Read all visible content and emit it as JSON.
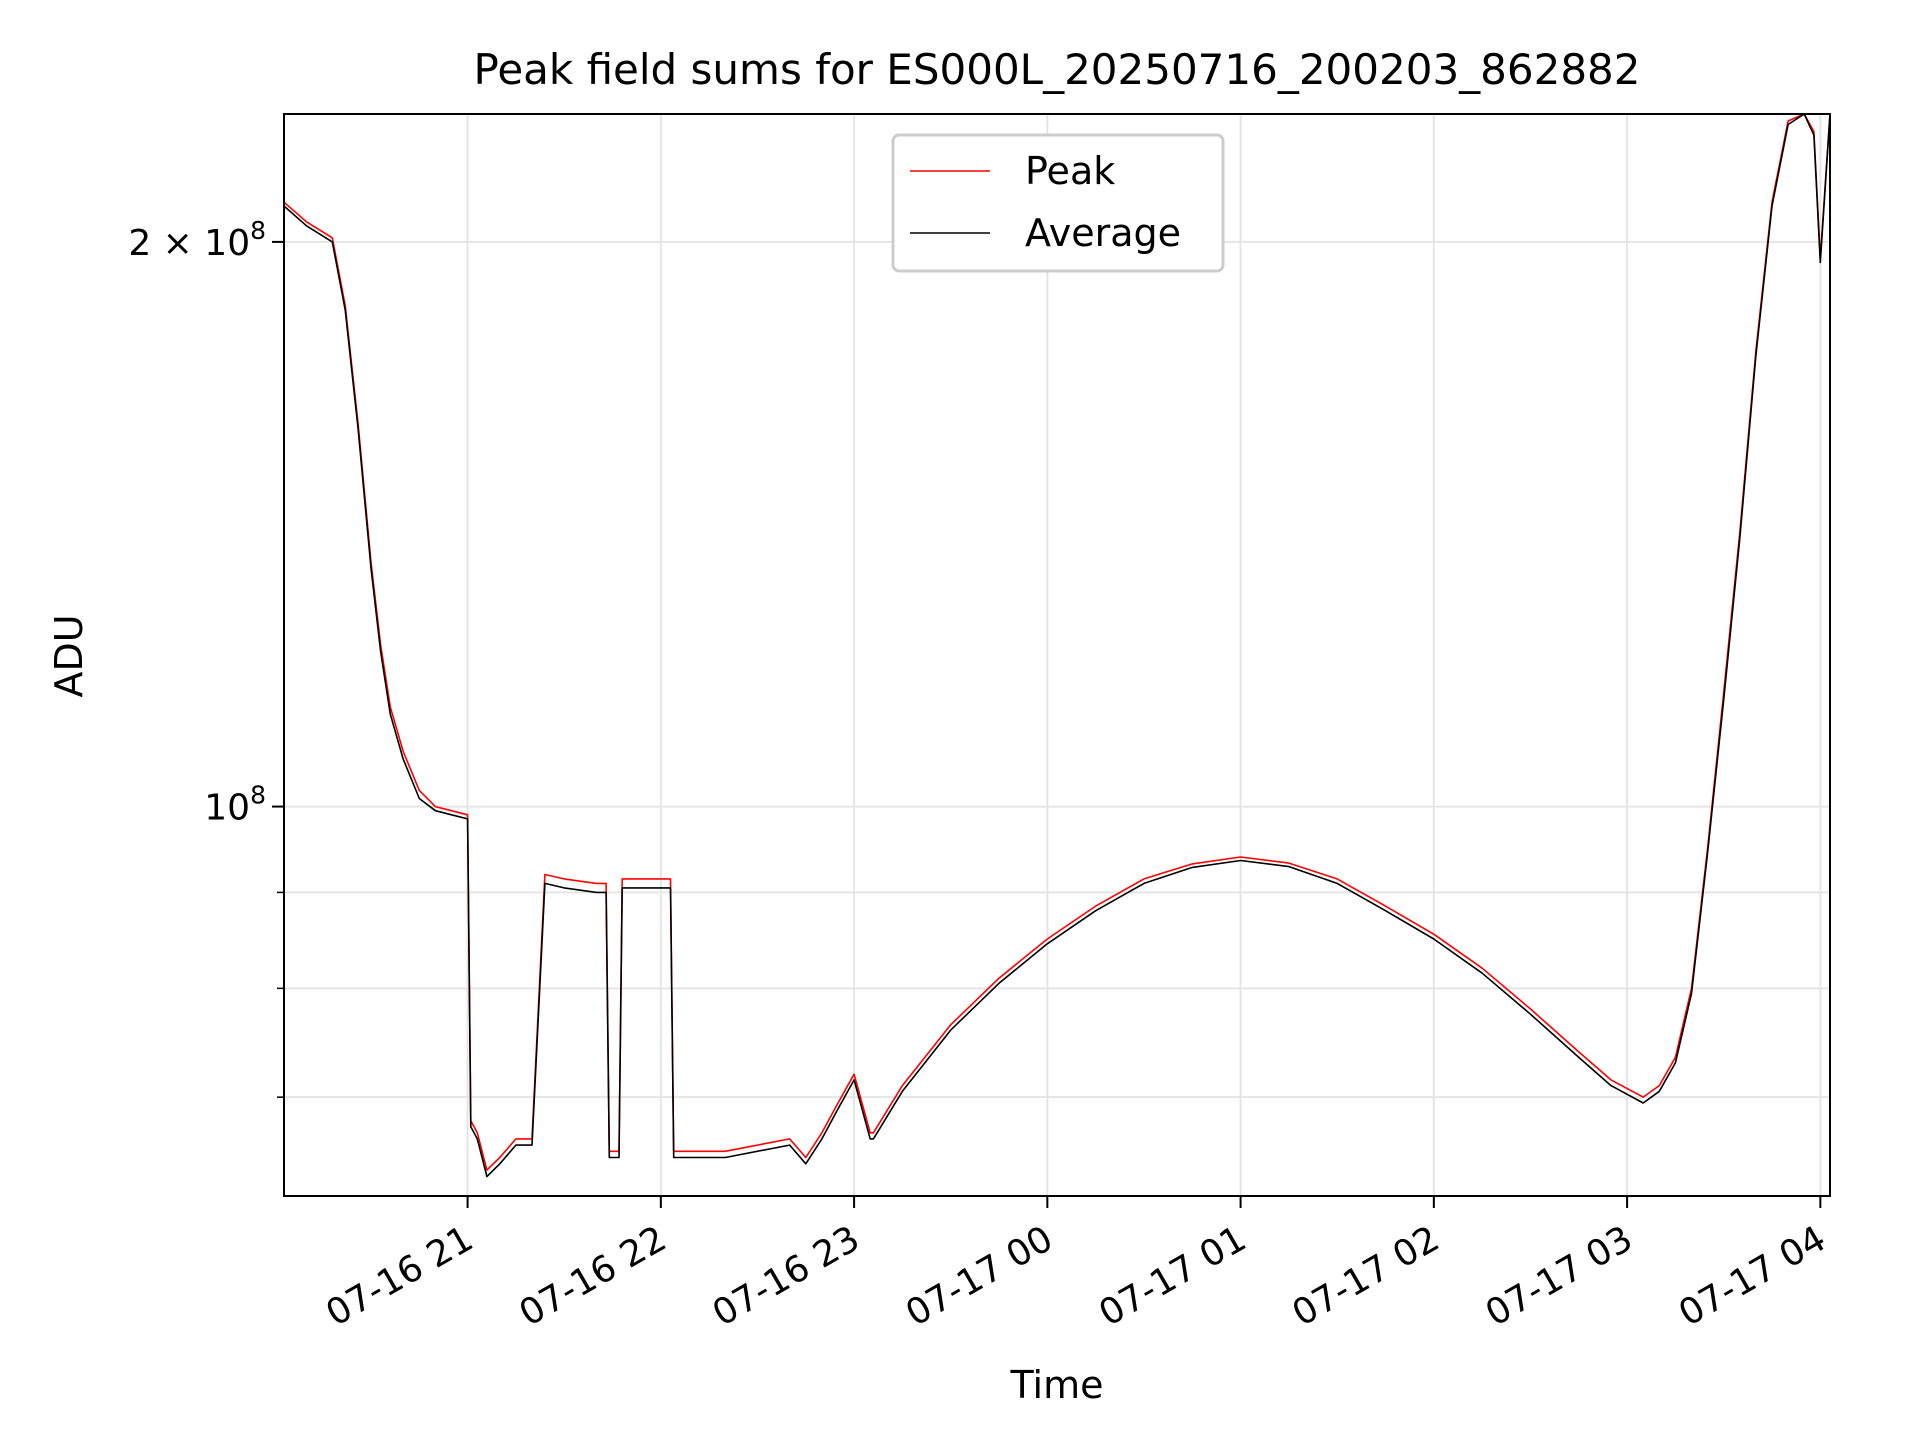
{
  "chart_data": {
    "type": "line",
    "title": "Peak field sums for ES000L_20250716_200203_862882",
    "xlabel": "Time",
    "ylabel": "ADU",
    "y_scale": "log",
    "grid": true,
    "legend_position": "top-center",
    "x_start": "2025-07-16 20:03",
    "x_end": "2025-07-17 04:03",
    "xlim": [
      "2025-07-16 20:03",
      "2025-07-17 04:03"
    ],
    "ylim": [
      62000000,
      234000000
    ],
    "x_ticks": [
      "07-16 21",
      "07-16 22",
      "07-16 23",
      "07-17 00",
      "07-17 01",
      "07-17 02",
      "07-17 03",
      "07-17 04"
    ],
    "y_tick_labels": [
      {
        "value": 200000000,
        "base": "2 × 10",
        "exp": "8"
      },
      {
        "value": 100000000,
        "base": "10",
        "exp": "8"
      }
    ],
    "y_minor_ticks": [
      70000000,
      80000000,
      90000000
    ],
    "series": [
      {
        "name": "Peak",
        "color": "#ff0000",
        "x": [
          "2025-07-16 20:03",
          "2025-07-16 20:10",
          "2025-07-16 20:18",
          "2025-07-16 20:22",
          "2025-07-16 20:26",
          "2025-07-16 20:30",
          "2025-07-16 20:33",
          "2025-07-16 20:36",
          "2025-07-16 20:40",
          "2025-07-16 20:45",
          "2025-07-16 20:50",
          "2025-07-16 20:55",
          "2025-07-16 21:00",
          "2025-07-16 21:01",
          "2025-07-16 21:03",
          "2025-07-16 21:06",
          "2025-07-16 21:10",
          "2025-07-16 21:15",
          "2025-07-16 21:20",
          "2025-07-16 21:24",
          "2025-07-16 21:30",
          "2025-07-16 21:40",
          "2025-07-16 21:43",
          "2025-07-16 21:44",
          "2025-07-16 21:47",
          "2025-07-16 21:48",
          "2025-07-16 21:55",
          "2025-07-16 22:03",
          "2025-07-16 22:04",
          "2025-07-16 22:20",
          "2025-07-16 22:40",
          "2025-07-16 22:45",
          "2025-07-16 22:50",
          "2025-07-16 22:55",
          "2025-07-16 23:00",
          "2025-07-16 23:05",
          "2025-07-16 23:06",
          "2025-07-16 23:15",
          "2025-07-16 23:30",
          "2025-07-16 23:45",
          "2025-07-17 00:00",
          "2025-07-17 00:15",
          "2025-07-17 00:30",
          "2025-07-17 00:45",
          "2025-07-17 01:00",
          "2025-07-17 01:15",
          "2025-07-17 01:30",
          "2025-07-17 01:45",
          "2025-07-17 02:00",
          "2025-07-17 02:15",
          "2025-07-17 02:30",
          "2025-07-17 02:45",
          "2025-07-17 02:55",
          "2025-07-17 03:05",
          "2025-07-17 03:10",
          "2025-07-17 03:15",
          "2025-07-17 03:20",
          "2025-07-17 03:25",
          "2025-07-17 03:30",
          "2025-07-17 03:35",
          "2025-07-17 03:40",
          "2025-07-17 03:45",
          "2025-07-17 03:50",
          "2025-07-17 03:55",
          "2025-07-17 03:58",
          "2025-07-17 04:00",
          "2025-07-17 04:03"
        ],
        "values": [
          210000000,
          205000000,
          201000000,
          185000000,
          160000000,
          135000000,
          122000000,
          113000000,
          107000000,
          102000000,
          100000000,
          99500000,
          99000000,
          68000000,
          67000000,
          64000000,
          65000000,
          66500000,
          66500000,
          92000000,
          91500000,
          91000000,
          91000000,
          65500000,
          65500000,
          91500000,
          91500000,
          91500000,
          65500000,
          65500000,
          66500000,
          65000000,
          67000000,
          69500000,
          72000000,
          67000000,
          67000000,
          71000000,
          76500000,
          81000000,
          85000000,
          88500000,
          91500000,
          93200000,
          94000000,
          93300000,
          91500000,
          88500000,
          85500000,
          82000000,
          78000000,
          74000000,
          71500000,
          70000000,
          71000000,
          73500000,
          80000000,
          95000000,
          115000000,
          140000000,
          175000000,
          210000000,
          232000000,
          234000000,
          229000000,
          196000000,
          234000000
        ]
      },
      {
        "name": "Average",
        "color": "#000000",
        "x": [
          "2025-07-16 20:03",
          "2025-07-16 20:10",
          "2025-07-16 20:18",
          "2025-07-16 20:22",
          "2025-07-16 20:26",
          "2025-07-16 20:30",
          "2025-07-16 20:33",
          "2025-07-16 20:36",
          "2025-07-16 20:40",
          "2025-07-16 20:45",
          "2025-07-16 20:50",
          "2025-07-16 20:55",
          "2025-07-16 21:00",
          "2025-07-16 21:01",
          "2025-07-16 21:03",
          "2025-07-16 21:06",
          "2025-07-16 21:10",
          "2025-07-16 21:15",
          "2025-07-16 21:20",
          "2025-07-16 21:24",
          "2025-07-16 21:30",
          "2025-07-16 21:40",
          "2025-07-16 21:43",
          "2025-07-16 21:44",
          "2025-07-16 21:47",
          "2025-07-16 21:48",
          "2025-07-16 21:55",
          "2025-07-16 22:03",
          "2025-07-16 22:04",
          "2025-07-16 22:20",
          "2025-07-16 22:40",
          "2025-07-16 22:45",
          "2025-07-16 22:50",
          "2025-07-16 22:55",
          "2025-07-16 23:00",
          "2025-07-16 23:05",
          "2025-07-16 23:06",
          "2025-07-16 23:15",
          "2025-07-16 23:30",
          "2025-07-16 23:45",
          "2025-07-17 00:00",
          "2025-07-17 00:15",
          "2025-07-17 00:30",
          "2025-07-17 00:45",
          "2025-07-17 01:00",
          "2025-07-17 01:15",
          "2025-07-17 01:30",
          "2025-07-17 01:45",
          "2025-07-17 02:00",
          "2025-07-17 02:15",
          "2025-07-17 02:30",
          "2025-07-17 02:45",
          "2025-07-17 02:55",
          "2025-07-17 03:05",
          "2025-07-17 03:10",
          "2025-07-17 03:15",
          "2025-07-17 03:20",
          "2025-07-17 03:25",
          "2025-07-17 03:30",
          "2025-07-17 03:35",
          "2025-07-17 03:40",
          "2025-07-17 03:45",
          "2025-07-17 03:50",
          "2025-07-17 03:55",
          "2025-07-17 03:58",
          "2025-07-17 04:00",
          "2025-07-17 04:03"
        ],
        "values": [
          209000000,
          204000000,
          200000000,
          184000000,
          159000000,
          134000000,
          121000000,
          112000000,
          106000000,
          101000000,
          99500000,
          99000000,
          98500000,
          67500000,
          66500000,
          63500000,
          64500000,
          66000000,
          66000000,
          91000000,
          90500000,
          90000000,
          90000000,
          65000000,
          65000000,
          90500000,
          90500000,
          90500000,
          65000000,
          65000000,
          66000000,
          64500000,
          66500000,
          69000000,
          71500000,
          66500000,
          66500000,
          70500000,
          76000000,
          80500000,
          84500000,
          88000000,
          91000000,
          92800000,
          93600000,
          92900000,
          91000000,
          88000000,
          85000000,
          81500000,
          77500000,
          73500000,
          71000000,
          69500000,
          70500000,
          73000000,
          79500000,
          94500000,
          114000000,
          139000000,
          174000000,
          209000000,
          231000000,
          234000000,
          228000000,
          195000000,
          234000000
        ]
      }
    ]
  }
}
